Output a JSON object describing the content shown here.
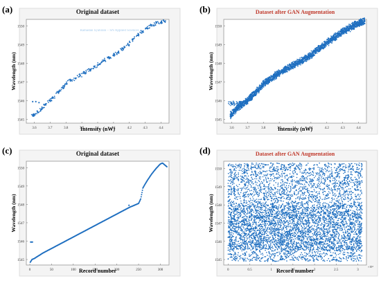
{
  "figure": {
    "background": "#ffffff",
    "point_color": "#1f6fc0",
    "title_color_original": "#111111",
    "title_color_gan": "#c0392b",
    "panel_bg": "#ffffff"
  },
  "chart_data": [
    {
      "panel_label": "(a)",
      "type": "scatter",
      "title": "Original dataset",
      "xlabel": "Intensity (nW)",
      "ylabel": "Wavelength (nm)",
      "xlim": [
        3.55,
        4.45
      ],
      "ylim": [
        1544.8,
        1550.35
      ],
      "xticks": [
        "3.6",
        "3.7",
        "3.8",
        "3.9",
        "4",
        "4.1",
        "4.2",
        "4.3",
        "4.4"
      ],
      "yticks": [
        "1545",
        "1546",
        "1547",
        "1548",
        "1549",
        "1550"
      ],
      "annotation": "Ramadan Syahrani – SN Applied Sciences",
      "grid": false,
      "series": [
        {
          "style": "sparse",
          "x": [
            3.59,
            3.6,
            3.62,
            3.65,
            3.67,
            3.7,
            3.72,
            3.75,
            3.78,
            3.8,
            3.83,
            3.86,
            3.89,
            3.92,
            3.95,
            3.98,
            4.01,
            4.04,
            4.07,
            4.1,
            4.13,
            4.16,
            4.19,
            4.22,
            4.25,
            4.28,
            4.31,
            4.34,
            4.37,
            4.4,
            4.42
          ],
          "y": [
            1545.2,
            1545.25,
            1545.4,
            1545.6,
            1545.8,
            1546.0,
            1546.15,
            1546.45,
            1546.7,
            1546.9,
            1547.1,
            1547.2,
            1547.35,
            1547.5,
            1547.65,
            1547.8,
            1547.95,
            1548.15,
            1548.3,
            1548.45,
            1548.6,
            1548.8,
            1549.0,
            1549.25,
            1549.5,
            1549.7,
            1549.9,
            1550.05,
            1550.15,
            1550.2,
            1550.25
          ]
        },
        {
          "style": "sparse",
          "x": [
            3.59,
            3.61,
            3.63
          ],
          "y": [
            1545.95,
            1545.95,
            1545.9
          ]
        }
      ]
    },
    {
      "panel_label": "(b)",
      "type": "scatter",
      "title": "Dataset after GAN Augmentation",
      "xlabel": "Intensity (nW)",
      "ylabel": "Wavelength (nm)",
      "xlim": [
        3.55,
        4.45
      ],
      "ylim": [
        1544.8,
        1550.35
      ],
      "xticks": [
        "3.6",
        "3.7",
        "3.8",
        "3.9",
        "4",
        "4.1",
        "4.2",
        "4.3",
        "4.4"
      ],
      "yticks": [
        "1545",
        "1546",
        "1547",
        "1548",
        "1549",
        "1550"
      ],
      "grid": false,
      "series": [
        {
          "style": "dense-band",
          "x": [
            3.59,
            3.65,
            3.7,
            3.75,
            3.8,
            3.9,
            4.0,
            4.1,
            4.2,
            4.3,
            4.4,
            4.44
          ],
          "y": [
            1545.2,
            1545.7,
            1546.0,
            1546.45,
            1546.9,
            1547.5,
            1547.95,
            1548.45,
            1549.1,
            1549.7,
            1550.15,
            1550.28
          ]
        }
      ]
    },
    {
      "panel_label": "(c)",
      "type": "scatter",
      "title": "Original dataset",
      "xlabel": "Record number",
      "ylabel": "Wavelength (nm)",
      "xlim": [
        -8,
        320
      ],
      "ylim": [
        1544.7,
        1550.35
      ],
      "xticks": [
        "0",
        "50",
        "100",
        "150",
        "200",
        "250",
        "300"
      ],
      "yticks": [
        "1545",
        "1546",
        "1547",
        "1548",
        "1549",
        "1550"
      ],
      "grid": false,
      "series": [
        {
          "style": "line-points",
          "x": [
            1,
            5,
            10,
            30,
            50,
            70,
            90,
            110,
            130,
            150,
            170,
            190,
            210,
            230,
            250,
            255,
            260,
            270,
            280,
            290,
            300,
            305,
            310,
            315
          ],
          "y": [
            1544.85,
            1545.0,
            1545.05,
            1545.35,
            1545.6,
            1545.85,
            1546.1,
            1546.35,
            1546.6,
            1546.85,
            1547.1,
            1547.35,
            1547.6,
            1547.85,
            1548.05,
            1548.3,
            1548.9,
            1549.3,
            1549.65,
            1549.95,
            1550.2,
            1550.25,
            1550.15,
            1550.05
          ]
        },
        {
          "style": "sparse",
          "x": [
            2,
            4,
            6,
            228
          ],
          "y": [
            1545.95,
            1545.95,
            1545.95,
            1547.95
          ]
        }
      ]
    },
    {
      "panel_label": "(d)",
      "type": "scatter",
      "title": "Dataset after GAN Augmentation",
      "xlabel": "Record number",
      "ylabel": "Wavelength (nm)",
      "xlim": [
        -0.1,
        3.2
      ],
      "ylim": [
        1544.7,
        1550.4
      ],
      "xticks": [
        "0",
        "0.5",
        "1",
        "1.5",
        "2",
        "2.5",
        "3"
      ],
      "yticks": [
        "1545",
        "1546",
        "1547",
        "1548",
        "1549",
        "1550"
      ],
      "x_multiplier": "×10⁴",
      "grid": false,
      "series": [
        {
          "style": "uniform-fill",
          "x": [
            0,
            3.1
          ],
          "y": [
            1544.9,
            1550.3
          ]
        }
      ]
    }
  ]
}
